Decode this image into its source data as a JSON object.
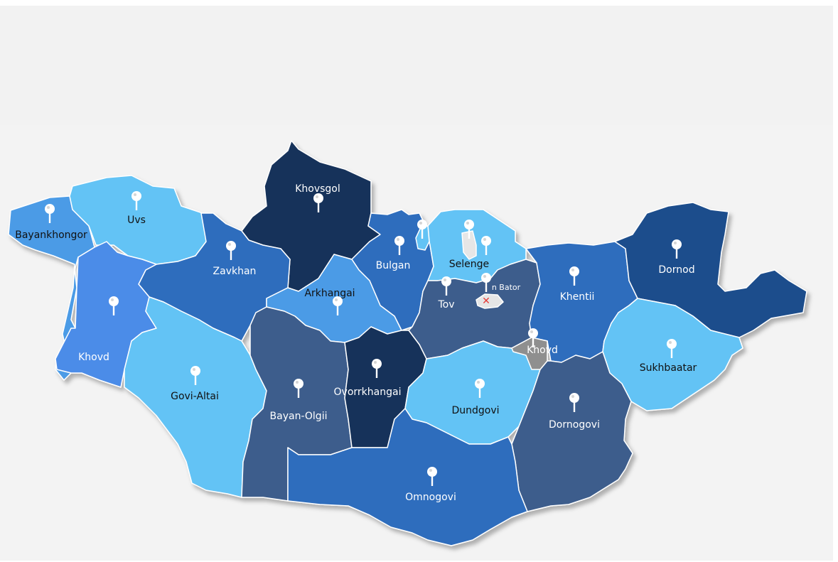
{
  "map": {
    "colors": {
      "background": "#f3f3f3",
      "lightest": "#63c3f5",
      "light": "#4c9be6",
      "medium": "#2d6dbd",
      "slate": "#3c5d8c",
      "darkest": "#15315a",
      "capital_area": "#8796b8",
      "grey": "#8f8f8f"
    },
    "regions": [
      {
        "name": "Bayankhongor",
        "color": "#4c9be6",
        "label_dark": true
      },
      {
        "name": "Uvs",
        "color": "#63c3f5",
        "label_dark": true
      },
      {
        "name": "Khovsgol",
        "color": "#15315a",
        "label_dark": false
      },
      {
        "name": "Zavkhan",
        "color": "#2d6dbd",
        "label_dark": false
      },
      {
        "name": "Bulgan",
        "color": "#2d6dbd",
        "label_dark": false
      },
      {
        "name": "Selenge",
        "color": "#63c3f5",
        "label_dark": true
      },
      {
        "name": "Arkhangai",
        "color": "#4c9be6",
        "label_dark": true
      },
      {
        "name": "Tov",
        "color": "#3c5d8c",
        "label_dark": false
      },
      {
        "name": "Khentii",
        "color": "#2d6dbd",
        "label_dark": false
      },
      {
        "name": "Dornod",
        "color": "#1f4e8c",
        "label_dark": false
      },
      {
        "name": "Khovd",
        "color": "#4c8ce8",
        "label_dark": false
      },
      {
        "name": "Govi-Altai",
        "color": "#63c3f5",
        "label_dark": true
      },
      {
        "name": "Bayan-Olgii",
        "color": "#3c5d8c",
        "label_dark": false
      },
      {
        "name": "Ovorrkhangai",
        "color": "#15315a",
        "label_dark": false
      },
      {
        "name": "Dundgovi",
        "color": "#63c3f5",
        "label_dark": true
      },
      {
        "name": "Sukhbaatar",
        "color": "#63c3f5",
        "label_dark": true
      },
      {
        "name": "Dornogovi",
        "color": "#3c5d8c",
        "label_dark": false
      },
      {
        "name": "Omnogovi",
        "color": "#2d6dbd",
        "label_dark": false
      },
      {
        "name": "Khovd",
        "color": "#8f8f8f",
        "label_dark": false
      },
      {
        "name": "",
        "color": "#63c3f5",
        "label_dark": false
      }
    ],
    "capital": {
      "label": "n Bator",
      "marker": "red-star-icon"
    },
    "pin_icon": "map-pin-icon"
  }
}
